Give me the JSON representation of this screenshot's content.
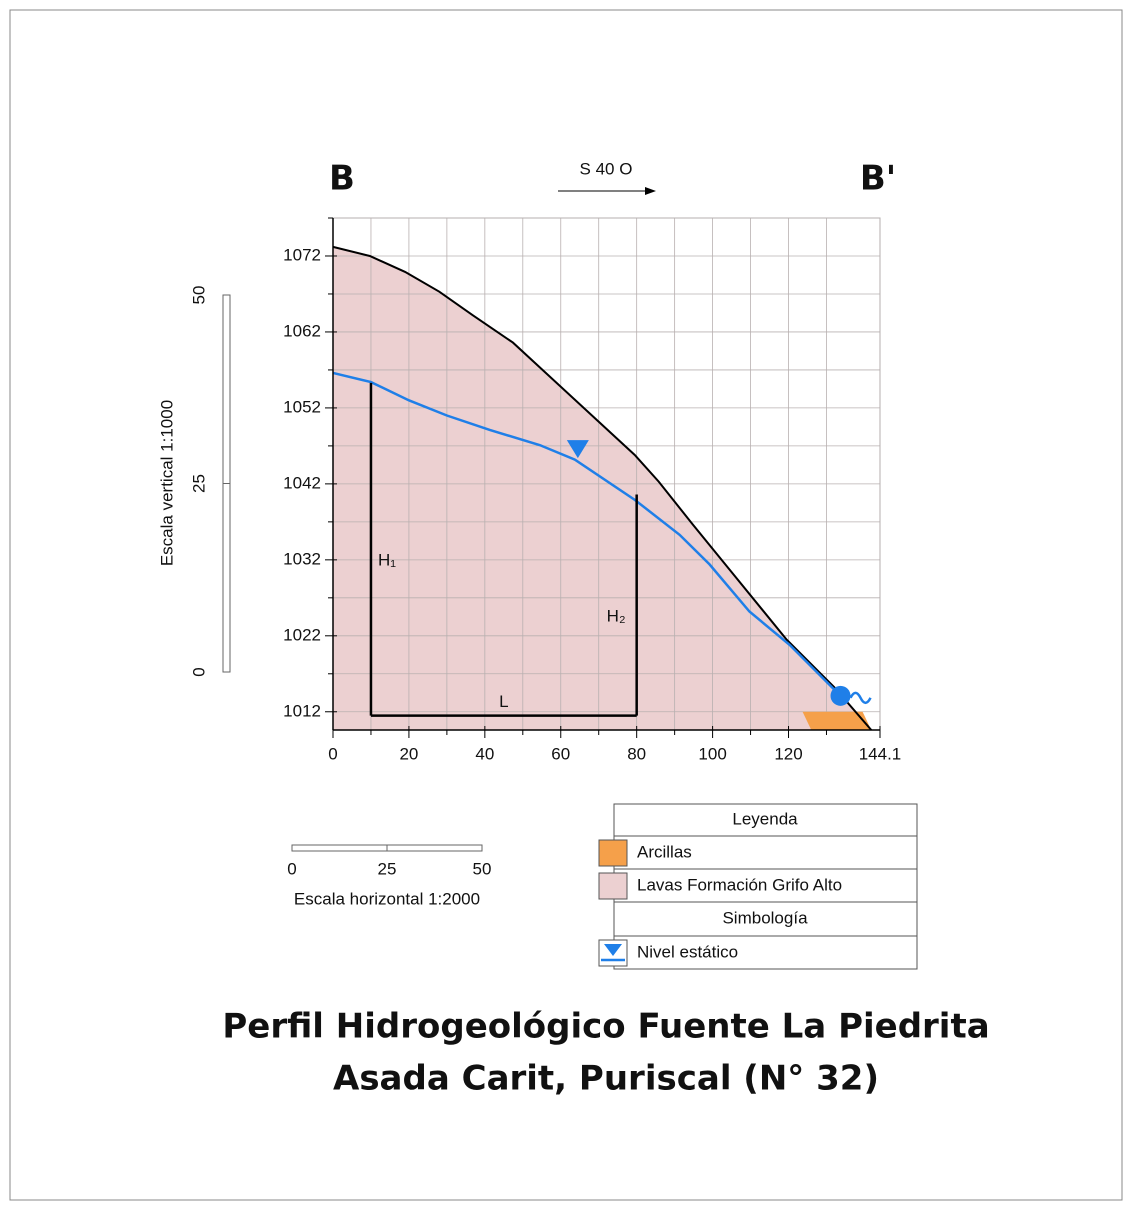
{
  "chart_data": {
    "type": "profile",
    "title": "Perfil Hidrogeológico Fuente La Piedrita",
    "subtitle": "Asada Carit, Puriscal (N° 32)",
    "direction": "S 40 O",
    "start_label": "B",
    "end_label": "B'",
    "xlim": [
      0,
      144.1
    ],
    "ylim": [
      1009.6,
      1077
    ],
    "xticks": [
      0,
      20,
      40,
      60,
      80,
      100,
      120,
      144.1
    ],
    "x_minor_ticks": [
      10,
      30,
      50,
      70,
      90,
      110,
      130
    ],
    "yticks": [
      1012,
      1022,
      1032,
      1042,
      1052,
      1062,
      1072
    ],
    "y_minor_ticks": [
      1017,
      1027,
      1037,
      1047,
      1057,
      1067,
      1077
    ],
    "grid": true,
    "series": [
      {
        "name": "Lavas Formación Grifo Alto",
        "color": "#ecd0d1",
        "x": [
          0,
          9.7,
          19,
          28,
          36.8,
          47.4,
          79.5,
          85.8,
          94.7,
          104.5,
          119.5,
          132.1,
          141.8
        ],
        "values": [
          1073.2,
          1072,
          1069.9,
          1067.3,
          1064.2,
          1060.6,
          1045.8,
          1042.3,
          1036.7,
          1030.7,
          1021.5,
          1015.2,
          1009.6
        ]
      },
      {
        "name": "Nivel estático",
        "color": "#1f7fe8",
        "x": [
          0,
          10,
          20,
          30,
          41.3,
          54.5,
          63.7,
          79.5,
          91.3,
          99.2,
          109.7,
          120.3,
          132.1
        ],
        "values": [
          1056.6,
          1055.4,
          1053,
          1051,
          1049.1,
          1047.1,
          1045.2,
          1039.9,
          1035.3,
          1031.4,
          1025.2,
          1020.8,
          1014.9
        ]
      }
    ],
    "clay": {
      "name": "Arcillas",
      "color": "#f5a04a",
      "x": [
        123.7,
        139.5,
        141.8,
        126
      ],
      "values": [
        1012,
        1012,
        1009.6,
        1009.6
      ]
    },
    "water_marker": {
      "x": 64.5,
      "value": 1046.7
    },
    "spring": {
      "x": 133.7,
      "value": 1014.1
    },
    "gradient": {
      "x1": 10,
      "x2": 80,
      "base": 1011.5,
      "h1": 1055.3,
      "h2": 1040.6,
      "h1_label": "H₁",
      "h2_label": "H₂",
      "l_label": "L"
    },
    "vertical_scale": {
      "label": "Escala vertical 1:1000",
      "ticks": [
        0,
        25,
        50
      ]
    },
    "horizontal_scale": {
      "label": "Escala horizontal 1:2000",
      "ticks": [
        0,
        25,
        50
      ]
    },
    "legend_title": "Leyenda",
    "symbology_title": "Simbología"
  }
}
